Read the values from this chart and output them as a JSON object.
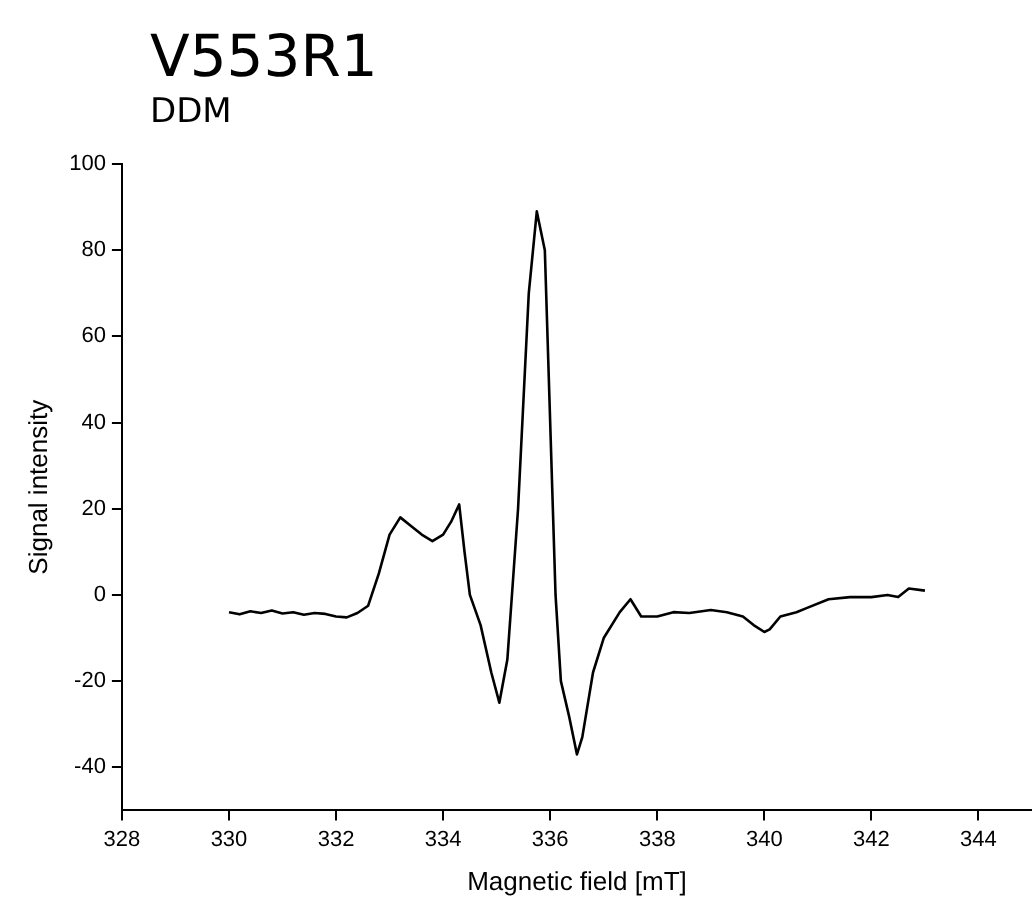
{
  "chart_data": {
    "type": "line",
    "title": "V553R1",
    "subtitle": "DDM",
    "xlabel": "Magnetic field [mT]",
    "ylabel": "Signal intensity",
    "xlim": [
      328,
      345
    ],
    "xticks": [
      328,
      330,
      332,
      334,
      336,
      338,
      340,
      342,
      344
    ],
    "ylim": [
      -50,
      100
    ],
    "yticks": [
      -40,
      -20,
      0,
      20,
      40,
      60,
      80,
      100
    ],
    "grid": false,
    "legend": false,
    "marker": "none",
    "line_style": "solid",
    "series": [
      {
        "color": "#000000",
        "x": [
          330,
          330.2,
          330.4,
          330.6,
          330.8,
          331,
          331.2,
          331.4,
          331.6,
          331.8,
          332,
          332.2,
          332.4,
          332.6,
          332.8,
          333,
          333.2,
          333.4,
          333.6,
          333.8,
          334,
          334.15,
          334.3,
          334.4,
          334.5,
          334.7,
          334.9,
          335.05,
          335.2,
          335.4,
          335.6,
          335.75,
          335.9,
          336,
          336.1,
          336.2,
          336.35,
          336.5,
          336.6,
          336.8,
          337,
          337.3,
          337.5,
          337.7,
          338,
          338.3,
          338.6,
          339,
          339.3,
          339.6,
          339.8,
          340,
          340.1,
          340.3,
          340.6,
          340.8,
          341.2,
          341.6,
          342,
          342.3,
          342.5,
          342.7,
          343
        ],
        "values": [
          -4,
          -4.5,
          -3.8,
          -4.2,
          -3.6,
          -4.3,
          -4,
          -4.6,
          -4.2,
          -4.4,
          -5,
          -5.2,
          -4.2,
          -2.5,
          5,
          14,
          18,
          16,
          14,
          12.5,
          14,
          17,
          21,
          10,
          0,
          -7,
          -18,
          -25,
          -15,
          20,
          70,
          89,
          80,
          40,
          0,
          -20,
          -28,
          -37,
          -33,
          -18,
          -10,
          -4,
          -1,
          -5,
          -5,
          -4,
          -4.2,
          -3.5,
          -4,
          -5,
          -7,
          -8.6,
          -8,
          -5,
          -4,
          -3,
          -1,
          -0.5,
          -0.5,
          0,
          -0.5,
          1.5,
          1
        ]
      }
    ]
  }
}
